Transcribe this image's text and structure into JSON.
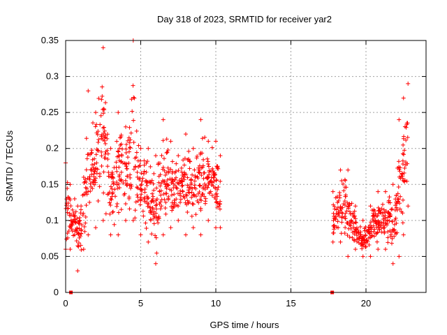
{
  "chart_data": {
    "type": "scatter",
    "title": "Day 318 of 2023, SRMTID for receiver yar2",
    "xlabel": "GPS time / hours",
    "ylabel": "SRMTID / TECUs",
    "xlim": [
      0,
      24
    ],
    "ylim": [
      0,
      0.35
    ],
    "x_ticks": [
      0,
      5,
      10,
      15,
      20
    ],
    "x_tick_labels": [
      "0",
      "5",
      "10",
      "15",
      "20"
    ],
    "y_ticks": [
      0,
      0.05,
      0.1,
      0.15,
      0.2,
      0.25,
      0.3,
      0.35
    ],
    "y_tick_labels": [
      "0",
      "0.05",
      "0.1",
      "0.15",
      "0.2",
      "0.25",
      "0.3",
      "0.35"
    ],
    "grid": true,
    "marker": "plus",
    "series": [
      {
        "name": "SRMTID",
        "color": "#ff0000",
        "envelope": [
          {
            "x": 0.0,
            "min": 0.06,
            "max": 0.18
          },
          {
            "x": 0.3,
            "min": 0.06,
            "max": 0.15
          },
          {
            "x": 0.6,
            "min": 0.08,
            "max": 0.13
          },
          {
            "x": 0.8,
            "min": 0.03,
            "max": 0.12
          },
          {
            "x": 1.2,
            "min": 0.06,
            "max": 0.16
          },
          {
            "x": 1.5,
            "min": 0.08,
            "max": 0.28
          },
          {
            "x": 2.0,
            "min": 0.09,
            "max": 0.25
          },
          {
            "x": 2.5,
            "min": 0.1,
            "max": 0.34
          },
          {
            "x": 3.0,
            "min": 0.08,
            "max": 0.2
          },
          {
            "x": 3.5,
            "min": 0.08,
            "max": 0.25
          },
          {
            "x": 4.0,
            "min": 0.1,
            "max": 0.23
          },
          {
            "x": 4.5,
            "min": 0.1,
            "max": 0.35
          },
          {
            "x": 5.0,
            "min": 0.08,
            "max": 0.2
          },
          {
            "x": 5.5,
            "min": 0.07,
            "max": 0.2
          },
          {
            "x": 6.0,
            "min": 0.04,
            "max": 0.19
          },
          {
            "x": 6.5,
            "min": 0.08,
            "max": 0.24
          },
          {
            "x": 7.0,
            "min": 0.09,
            "max": 0.21
          },
          {
            "x": 7.5,
            "min": 0.1,
            "max": 0.19
          },
          {
            "x": 8.0,
            "min": 0.08,
            "max": 0.22
          },
          {
            "x": 8.5,
            "min": 0.09,
            "max": 0.2
          },
          {
            "x": 9.0,
            "min": 0.08,
            "max": 0.24
          },
          {
            "x": 9.5,
            "min": 0.1,
            "max": 0.21
          },
          {
            "x": 10.0,
            "min": 0.09,
            "max": 0.21
          },
          {
            "x": 10.3,
            "min": 0.09,
            "max": 0.19
          },
          {
            "x": 17.8,
            "min": 0.07,
            "max": 0.14
          },
          {
            "x": 18.3,
            "min": 0.07,
            "max": 0.17
          },
          {
            "x": 18.8,
            "min": 0.05,
            "max": 0.17
          },
          {
            "x": 19.3,
            "min": 0.06,
            "max": 0.12
          },
          {
            "x": 19.8,
            "min": 0.05,
            "max": 0.1
          },
          {
            "x": 20.3,
            "min": 0.05,
            "max": 0.12
          },
          {
            "x": 20.8,
            "min": 0.06,
            "max": 0.14
          },
          {
            "x": 21.3,
            "min": 0.06,
            "max": 0.14
          },
          {
            "x": 21.8,
            "min": 0.04,
            "max": 0.15
          },
          {
            "x": 22.2,
            "min": 0.05,
            "max": 0.24
          },
          {
            "x": 22.5,
            "min": 0.08,
            "max": 0.27
          },
          {
            "x": 22.8,
            "min": 0.12,
            "max": 0.29
          }
        ],
        "zero_points": [
          0.35,
          17.75
        ]
      }
    ]
  }
}
